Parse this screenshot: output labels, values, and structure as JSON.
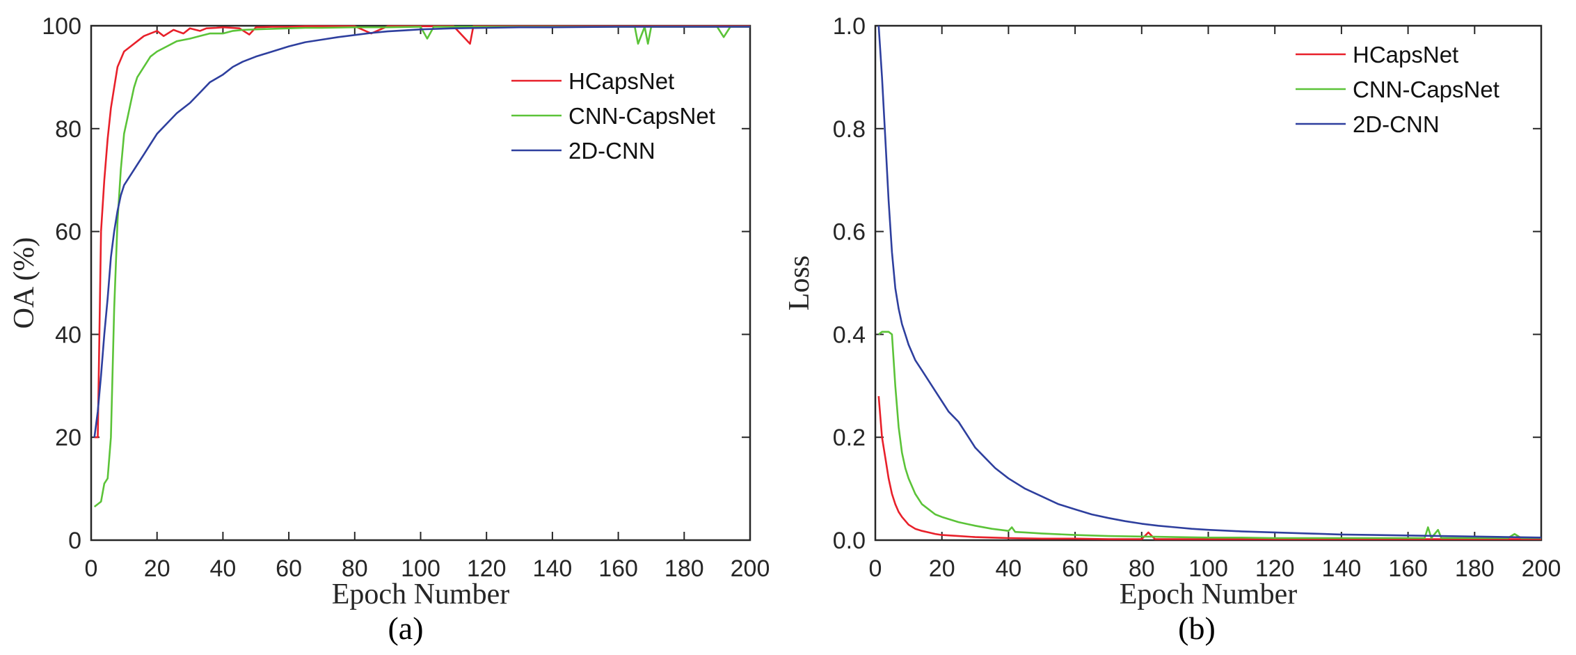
{
  "chart_data": [
    {
      "type": "line",
      "caption": "(a)",
      "xlabel": "Epoch Number",
      "ylabel": "OA (%)",
      "xlim": [
        0,
        200
      ],
      "ylim": [
        0,
        100
      ],
      "xticks": [
        0,
        20,
        40,
        60,
        80,
        100,
        120,
        140,
        160,
        180,
        200
      ],
      "yticks": [
        0,
        20,
        40,
        60,
        80,
        100
      ],
      "legend_position": "top-right",
      "series": [
        {
          "name": "HCapsNet",
          "color": "#e8202a",
          "x": [
            1,
            2,
            3,
            4,
            5,
            6,
            7,
            8,
            10,
            12,
            14,
            16,
            18,
            20,
            22,
            25,
            28,
            30,
            33,
            35,
            38,
            40,
            45,
            48,
            50,
            55,
            60,
            65,
            70,
            80,
            85,
            90,
            100,
            110,
            115,
            116,
            120,
            130,
            140,
            160,
            180,
            200
          ],
          "values": [
            20,
            20,
            60,
            70,
            78,
            84,
            88,
            92,
            95,
            96,
            97,
            98,
            98.5,
            99,
            98,
            99.2,
            98.5,
            99.5,
            99,
            99.5,
            99.6,
            99.7,
            99.5,
            98.3,
            99.7,
            99.8,
            99.8,
            99.9,
            99.9,
            99.9,
            98.5,
            99.9,
            99.9,
            99.9,
            96.5,
            99.9,
            99.9,
            99.9,
            99.9,
            99.9,
            99.9,
            99.9
          ]
        },
        {
          "name": "CNN-CapsNet",
          "color": "#5bc338",
          "x": [
            1,
            3,
            4,
            5,
            6,
            7,
            8,
            9,
            10,
            11,
            12,
            13,
            14,
            16,
            18,
            20,
            23,
            26,
            30,
            33,
            36,
            40,
            43,
            46,
            50,
            55,
            60,
            65,
            70,
            80,
            90,
            100,
            102,
            104,
            110,
            120,
            130,
            140,
            150,
            160,
            165,
            166,
            168,
            169,
            170,
            180,
            190,
            192,
            194,
            200
          ],
          "values": [
            6.5,
            7.5,
            11,
            12,
            20,
            45,
            62,
            72,
            79,
            82,
            85,
            88,
            90,
            92,
            94,
            95,
            96,
            97,
            97.5,
            98,
            98.5,
            98.5,
            99,
            99.2,
            99.3,
            99.4,
            99.5,
            99.6,
            99.6,
            99.7,
            99.7,
            99.8,
            97.5,
            99.8,
            99.8,
            99.8,
            99.8,
            99.8,
            99.8,
            99.8,
            99.8,
            96.5,
            99.8,
            96.5,
            99.8,
            99.8,
            99.8,
            97.8,
            99.8,
            99.8
          ]
        },
        {
          "name": "2D-CNN",
          "color": "#2e3f9e",
          "x": [
            1,
            2,
            3,
            4,
            5,
            6,
            7,
            8,
            9,
            10,
            12,
            14,
            16,
            18,
            20,
            23,
            26,
            30,
            33,
            36,
            40,
            43,
            46,
            50,
            55,
            60,
            65,
            70,
            75,
            80,
            85,
            90,
            95,
            100,
            110,
            120,
            130,
            140,
            150,
            160,
            170,
            180,
            190,
            200
          ],
          "values": [
            20,
            25,
            32,
            40,
            47,
            55,
            60,
            64,
            67,
            69,
            71,
            73,
            75,
            77,
            79,
            81,
            83,
            85,
            87,
            89,
            90.5,
            92,
            93,
            94,
            95,
            96,
            96.8,
            97.3,
            97.8,
            98.2,
            98.6,
            98.9,
            99.1,
            99.3,
            99.5,
            99.6,
            99.7,
            99.7,
            99.75,
            99.8,
            99.8,
            99.8,
            99.8,
            99.8
          ]
        }
      ]
    },
    {
      "type": "line",
      "caption": "(b)",
      "xlabel": "Epoch Number",
      "ylabel": "Loss",
      "xlim": [
        0,
        200
      ],
      "ylim": [
        0,
        1.0
      ],
      "xticks": [
        0,
        20,
        40,
        60,
        80,
        100,
        120,
        140,
        160,
        180,
        200
      ],
      "yticks": [
        0.0,
        0.2,
        0.4,
        0.6,
        0.8,
        1.0
      ],
      "legend_position": "top-right",
      "series": [
        {
          "name": "HCapsNet",
          "color": "#e8202a",
          "x": [
            1,
            2,
            3,
            4,
            5,
            6,
            7,
            8,
            10,
            12,
            14,
            16,
            18,
            20,
            25,
            30,
            35,
            40,
            50,
            60,
            70,
            80,
            82,
            84,
            90,
            100,
            120,
            140,
            160,
            180,
            200
          ],
          "values": [
            0.28,
            0.2,
            0.16,
            0.12,
            0.09,
            0.07,
            0.055,
            0.045,
            0.03,
            0.022,
            0.018,
            0.015,
            0.012,
            0.01,
            0.008,
            0.006,
            0.005,
            0.004,
            0.003,
            0.003,
            0.002,
            0.002,
            0.015,
            0.002,
            0.002,
            0.002,
            0.002,
            0.002,
            0.002,
            0.002,
            0.002
          ]
        },
        {
          "name": "CNN-CapsNet",
          "color": "#5bc338",
          "x": [
            1,
            2,
            3,
            4,
            5,
            6,
            7,
            8,
            9,
            10,
            12,
            14,
            16,
            18,
            20,
            25,
            30,
            35,
            40,
            41,
            42,
            45,
            50,
            60,
            70,
            80,
            90,
            100,
            110,
            120,
            140,
            160,
            165,
            166,
            167,
            169,
            170,
            180,
            190,
            192,
            194,
            200
          ],
          "values": [
            0.4,
            0.405,
            0.405,
            0.405,
            0.4,
            0.3,
            0.22,
            0.17,
            0.14,
            0.12,
            0.09,
            0.07,
            0.06,
            0.05,
            0.045,
            0.035,
            0.028,
            0.022,
            0.018,
            0.025,
            0.016,
            0.015,
            0.013,
            0.01,
            0.008,
            0.007,
            0.006,
            0.005,
            0.005,
            0.004,
            0.004,
            0.004,
            0.004,
            0.025,
            0.004,
            0.02,
            0.004,
            0.004,
            0.004,
            0.012,
            0.004,
            0.004
          ]
        },
        {
          "name": "2D-CNN",
          "color": "#2e3f9e",
          "x": [
            1,
            2,
            3,
            4,
            5,
            6,
            7,
            8,
            9,
            10,
            12,
            14,
            16,
            18,
            20,
            22,
            25,
            28,
            30,
            33,
            36,
            40,
            45,
            50,
            55,
            60,
            65,
            70,
            75,
            80,
            85,
            90,
            95,
            100,
            110,
            120,
            130,
            140,
            150,
            160,
            170,
            180,
            190,
            200
          ],
          "values": [
            1.0,
            0.9,
            0.78,
            0.66,
            0.56,
            0.49,
            0.45,
            0.42,
            0.4,
            0.38,
            0.35,
            0.33,
            0.31,
            0.29,
            0.27,
            0.25,
            0.23,
            0.2,
            0.18,
            0.16,
            0.14,
            0.12,
            0.1,
            0.085,
            0.07,
            0.06,
            0.05,
            0.043,
            0.037,
            0.032,
            0.028,
            0.025,
            0.022,
            0.02,
            0.017,
            0.015,
            0.013,
            0.011,
            0.01,
            0.009,
            0.008,
            0.007,
            0.006,
            0.005
          ]
        }
      ]
    }
  ]
}
